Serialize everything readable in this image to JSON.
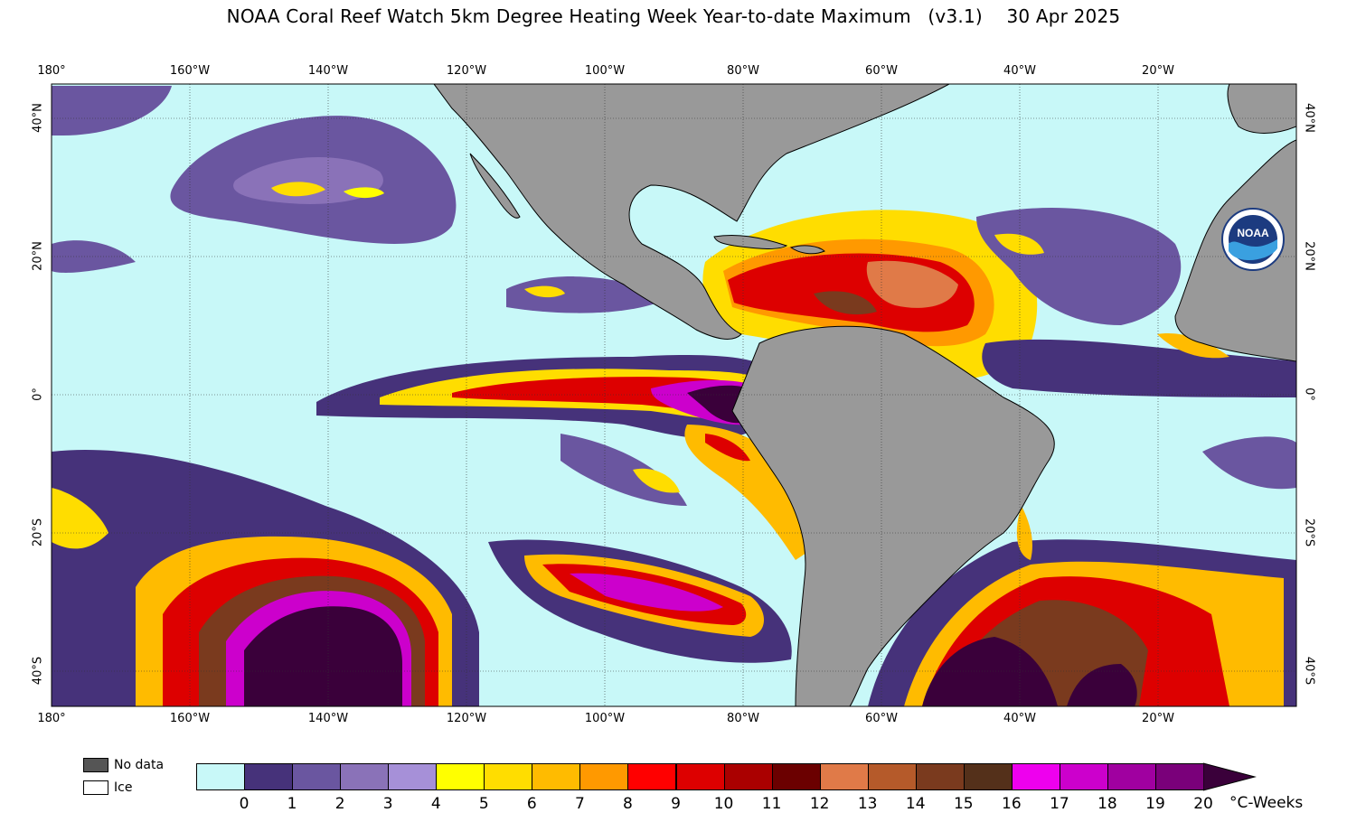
{
  "title": {
    "main": "NOAA Coral Reef Watch 5km Degree Heating Week Year-to-date Maximum",
    "version": "(v3.1)",
    "date": "30 Apr 2025"
  },
  "map": {
    "lon_labels_top": [
      "180°",
      "160°W",
      "140°W",
      "120°W",
      "100°W",
      "80°W",
      "60°W",
      "40°W",
      "20°W"
    ],
    "lon_labels_bottom": [
      "180°",
      "160°W",
      "140°W",
      "120°W",
      "100°W",
      "80°W",
      "60°W",
      "40°W",
      "20°W"
    ],
    "lat_labels_left": [
      "40°N",
      "20°N",
      "0°",
      "20°S",
      "40°S"
    ],
    "lat_labels_right": [
      "40°N",
      "20°N",
      "0°",
      "20°S",
      "40°S"
    ],
    "ocean_color": "#c8f8f8",
    "land_color": "#999999",
    "logo": {
      "icon": "noaa-logo",
      "text": "NOAA"
    }
  },
  "legend": {
    "nodata_label": "No data",
    "nodata_color": "#555555",
    "ice_label": "Ice",
    "ice_color": "#ffffff"
  },
  "colorbar": {
    "colors": [
      "#c8f8f8",
      "#46327a",
      "#6a56a0",
      "#8a72b8",
      "#a690d8",
      "#ffff00",
      "#ffdd00",
      "#ffbb00",
      "#ff9900",
      "#ff0000",
      "#dd0000",
      "#aa0000",
      "#6b0000",
      "#e07a48",
      "#b55a2a",
      "#7a3a1e",
      "#54301a",
      "#ee00ee",
      "#cc00cc",
      "#a000a0",
      "#7a007a",
      "#3a003a"
    ],
    "ticks": [
      "0",
      "1",
      "2",
      "3",
      "4",
      "5",
      "6",
      "7",
      "8",
      "9",
      "10",
      "11",
      "12",
      "13",
      "14",
      "15",
      "16",
      "17",
      "18",
      "19",
      "20"
    ],
    "units": "°C-Weeks"
  }
}
